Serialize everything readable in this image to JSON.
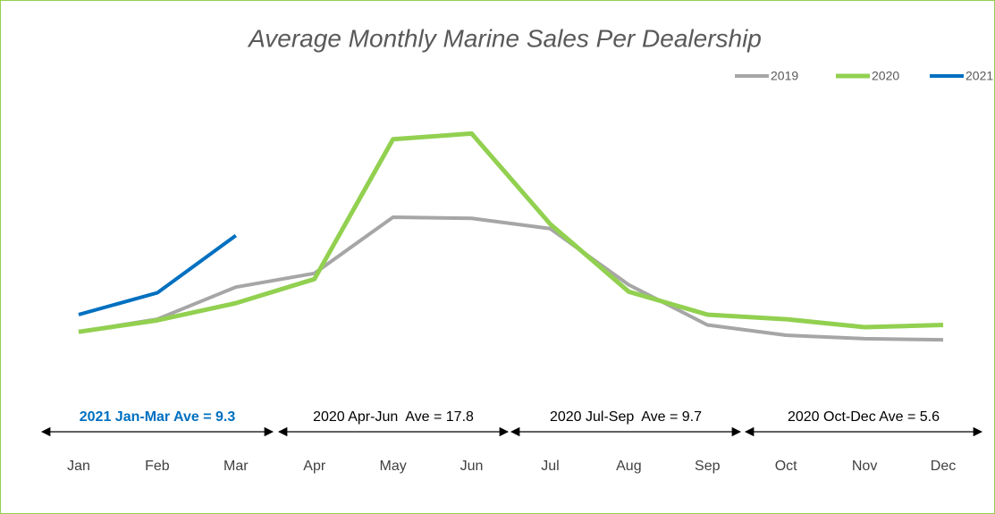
{
  "chart_data": {
    "type": "line",
    "title": "Average Monthly Marine Sales Per Dealership",
    "categories": [
      "Jan",
      "Feb",
      "Mar",
      "Apr",
      "May",
      "Jun",
      "Jul",
      "Aug",
      "Sep",
      "Oct",
      "Nov",
      "Dec"
    ],
    "series": [
      {
        "name": "2019",
        "color": "#a6a6a6",
        "values": [
          4.9,
          6.0,
          8.8,
          10.0,
          14.9,
          14.8,
          13.9,
          9.0,
          5.5,
          4.6,
          4.3,
          4.2
        ]
      },
      {
        "name": "2020",
        "color": "#92d050",
        "values": [
          4.9,
          5.9,
          7.4,
          9.5,
          21.7,
          22.2,
          14.3,
          8.4,
          6.4,
          6.0,
          5.3,
          5.5
        ]
      },
      {
        "name": "2021",
        "color": "#0070c0",
        "values": [
          6.4,
          8.3,
          13.3,
          null,
          null,
          null,
          null,
          null,
          null,
          null,
          null,
          null
        ]
      }
    ],
    "ylim": [
      0,
      28
    ],
    "legend": "top-right",
    "annotations": [
      {
        "text": "2021 Jan-Mar Ave = 9.3",
        "color": "#0070c0"
      },
      {
        "text": "2020 Apr-Jun  Ave = 17.8",
        "color": "#000000"
      },
      {
        "text": "2020 Jul-Sep  Ave = 9.7",
        "color": "#000000"
      },
      {
        "text": "2020 Oct-Dec Ave = 5.6",
        "color": "#000000"
      }
    ]
  }
}
